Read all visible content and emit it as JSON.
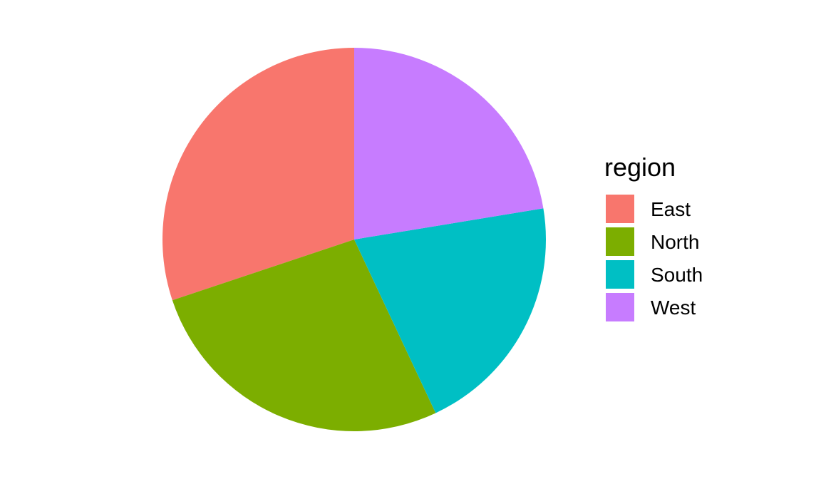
{
  "chart_data": {
    "type": "pie",
    "legend_title": "region",
    "legend_position": "right",
    "slices": [
      {
        "label": "East",
        "value": 30.4,
        "color": "#F8766D"
      },
      {
        "label": "North",
        "value": 27.1,
        "color": "#7CAE00"
      },
      {
        "label": "South",
        "value": 20.8,
        "color": "#00BFC4"
      },
      {
        "label": "West",
        "value": 22.6,
        "color": "#C77CFF"
      }
    ]
  }
}
